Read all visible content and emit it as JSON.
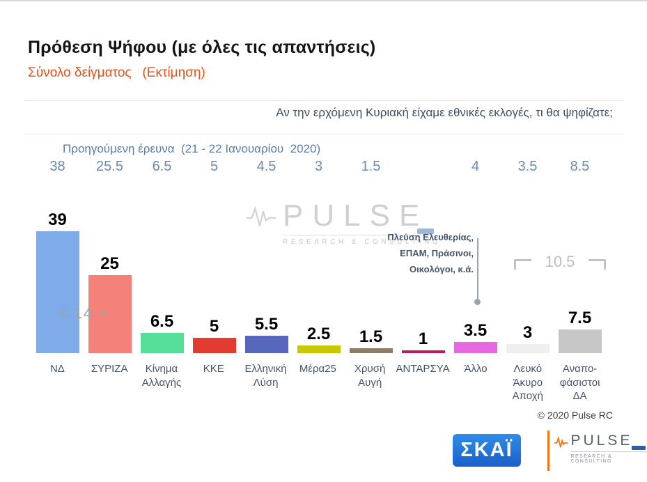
{
  "header": {
    "title": "Πρόθεση Ψήφου (με όλες τις απαντήσεις)",
    "subtitle": "Σύνολο δείγματος   (Εκτίμηση)"
  },
  "question": "Αν την ερχόμενη Κυριακή είχαμε εθνικές εκλογές, τι θα ψηφίζατε;",
  "previous_label": "Προηγούμενη έρευνα  (21 - 22 Ιανουαρίου  2020)",
  "annotations": {
    "lead_gap": "< 14 >",
    "bracket_sum": "10.5",
    "other_parties_note": "Πλεύση Ελευθερίας,\nΕΠΑΜ,  Πράσινοι,\nΟικολόγοι,  κ.ά.",
    "copyright": "© 2020 Pulse RC"
  },
  "watermark": {
    "wordmark": "PULSE",
    "tagline": "RESEARCH & CONSULTING"
  },
  "footer_logos": {
    "skai": "ΣΚΑΪ",
    "pulse_wordmark": "PULSE",
    "pulse_tagline": "RESEARCH & CONSULTING"
  },
  "colors": {
    "accent_orange": "#E8531A",
    "steel_blue_text": "#5B7CA8",
    "note_blue_text": "#44546A"
  },
  "chart_data": {
    "type": "bar",
    "title": "Πρόθεση Ψήφου (με όλες τις απαντήσεις)",
    "subtitle": "Σύνολο δείγματος (Εκτίμηση)",
    "question": "Αν την ερχόμενη Κυριακή είχαμε εθνικές εκλογές, τι θα ψηφίζατε;",
    "categories": [
      "ΝΔ",
      "ΣΥΡΙΖΑ",
      "Κίνημα Αλλαγής",
      "ΚΚΕ",
      "Ελληνική Λύση",
      "Μέρα25",
      "Χρυσή Αυγή",
      "ΑΝΤΑΡΣΥΑ",
      "Άλλο",
      "Λευκό Άκυρο Αποχή",
      "Αναποφάσιστοι ΔΑ"
    ],
    "category_labels": [
      "ΝΔ",
      "ΣΥΡΙΖΑ",
      "Κίνημα\nΑλλαγής",
      "ΚΚΕ",
      "Ελληνική\nΛύση",
      "Μέρα25",
      "Χρυσή\nΑυγή",
      "ΑΝΤΑΡΣΥΑ",
      "Άλλο",
      "Λευκό\nΆκυρο\nΑποχή",
      "Αναπο-\nφάσιστοι\nΔΑ"
    ],
    "series": [
      {
        "name": "Εκτίμηση",
        "values": [
          39,
          25,
          6.5,
          5,
          5.5,
          2.5,
          1.5,
          1,
          3.5,
          3,
          7.5
        ]
      },
      {
        "name": "Προηγούμενη έρευνα (21 - 22 Ιανουαρίου 2020)",
        "values": [
          38,
          25.5,
          6.5,
          5,
          4.5,
          3,
          1.5,
          null,
          4,
          3.5,
          8.5
        ]
      }
    ],
    "bar_colors": [
      "#7FACE8",
      "#F5827A",
      "#55DF98",
      "#E23B30",
      "#5767BE",
      "#C6C800",
      "#8D7C68",
      "#C2175A",
      "#E769E2",
      "#EFEFEF",
      "#C7C7C7"
    ],
    "ylim": [
      0,
      43
    ],
    "grid": false,
    "legend": "none",
    "notes": {
      "gap_between_top_two": 14,
      "last_two_sum": 10.5,
      "other_category_includes": "Πλεύση Ελευθερίας, ΕΠΑΜ, Πράσινοι, Οικολόγοι, κ.ά."
    }
  }
}
